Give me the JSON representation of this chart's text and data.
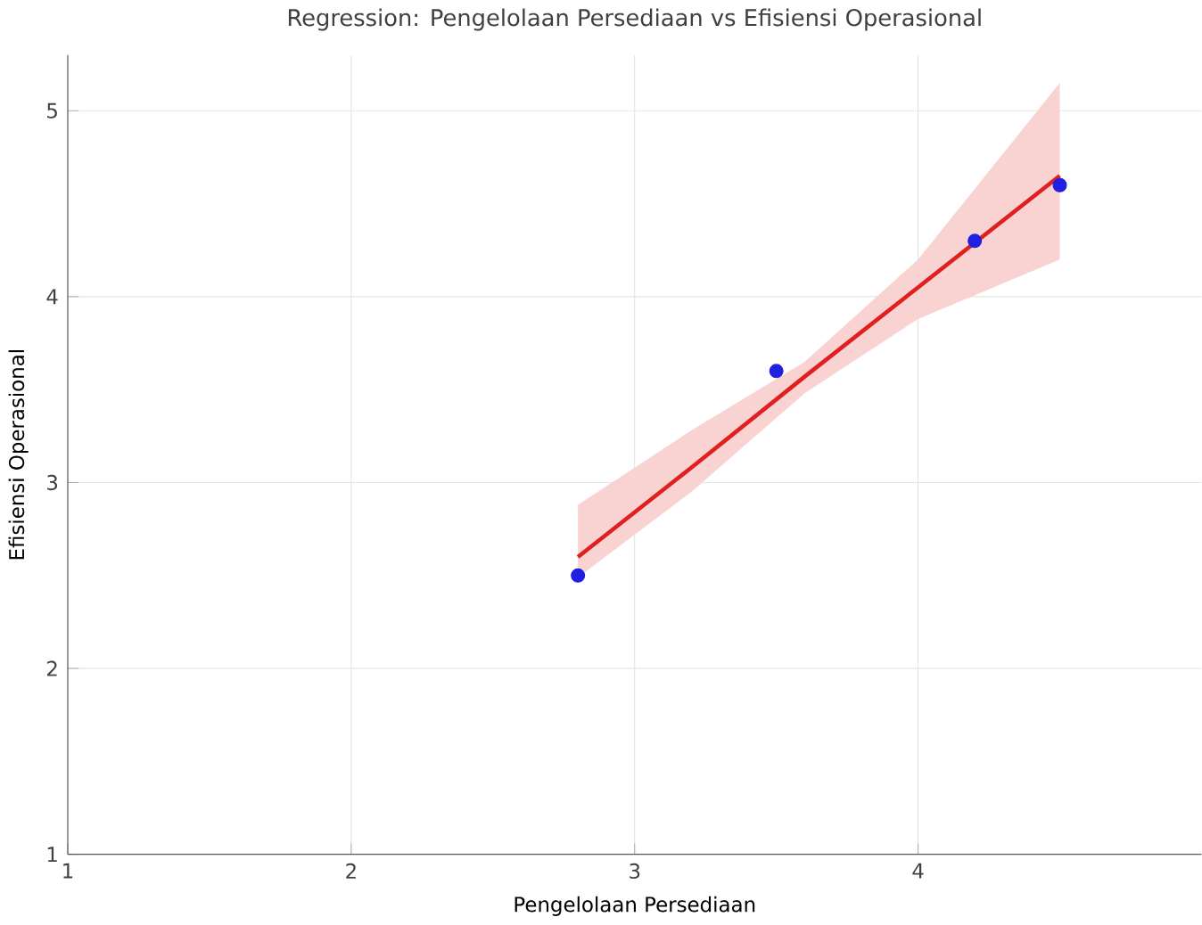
{
  "chart_data": {
    "type": "scatter",
    "title": "Regression: Pengelolaan Persediaan vs Efisiensi Operasional",
    "xlabel": "Pengelolaan Persediaan",
    "ylabel": "Efisiensi Operasional",
    "series": [
      {
        "color": "#2020e0",
        "x": [
          2.8,
          3.5,
          4.2,
          4.5
        ],
        "values": [
          2.5,
          3.6,
          4.3,
          4.6
        ]
      },
      {
        "type": "line",
        "marker": "none",
        "color": "#e02020",
        "x": [
          2.8,
          3.2,
          3.6,
          4.0,
          4.5
        ],
        "values": [
          2.6,
          3.08,
          3.57,
          4.05,
          4.65
        ],
        "lower": [
          2.49,
          2.95,
          3.48,
          3.88,
          4.2
        ],
        "upper": [
          2.88,
          3.28,
          3.65,
          4.2,
          5.15
        ]
      }
    ],
    "xlim": [
      1,
      5
    ],
    "ylim": [
      1,
      5.3
    ],
    "xticks": [
      1,
      2,
      3,
      4
    ],
    "yticks": [
      1,
      2,
      3,
      4,
      5
    ],
    "grid": true,
    "marker": "circle"
  }
}
